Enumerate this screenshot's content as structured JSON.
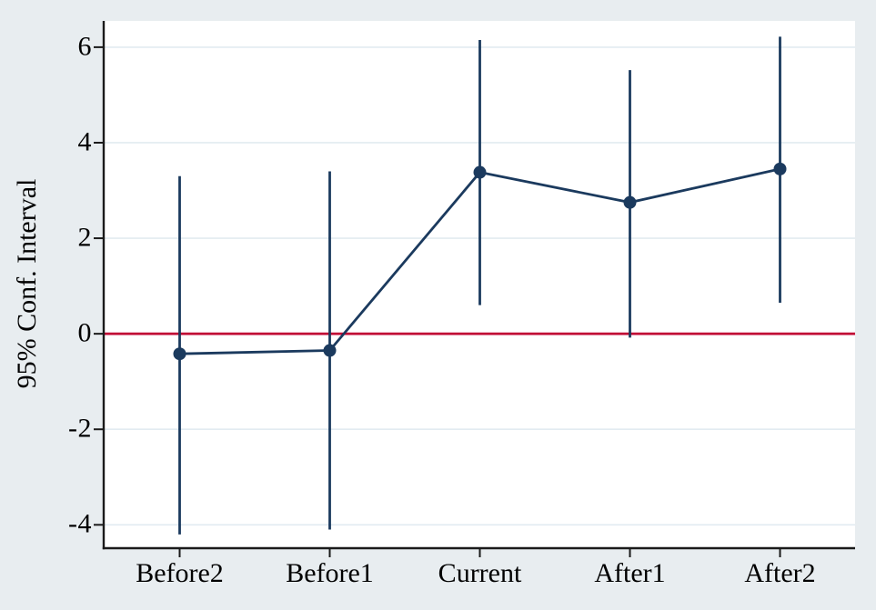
{
  "chart_data": {
    "type": "line",
    "subtype": "point_estimates_with_95ci_errorbars",
    "title": "",
    "xlabel": "",
    "ylabel": "95% Conf. Interval",
    "categories": [
      "Before2",
      "Before1",
      "Current",
      "After1",
      "After2"
    ],
    "series": [
      {
        "name": "point_estimate",
        "values": [
          -0.42,
          -0.35,
          3.38,
          2.75,
          3.45
        ]
      },
      {
        "name": "ci_lower",
        "values": [
          -4.2,
          -4.1,
          0.6,
          -0.08,
          0.65
        ]
      },
      {
        "name": "ci_upper",
        "values": [
          3.3,
          3.4,
          6.15,
          5.52,
          6.22
        ]
      }
    ],
    "yticks": [
      6,
      4,
      2,
      0,
      -2,
      -4
    ],
    "ytick_labels": [
      "6",
      "4",
      "2",
      "0",
      "-2",
      "-4"
    ],
    "ylim": [
      -4.47,
      6.55
    ],
    "grid": true,
    "legend": "none",
    "ref_line_y": 0,
    "colors": {
      "series": "#1b3a5e",
      "ref_line": "#c10534",
      "grid": "#e2ebf1",
      "background": "#e8edf0",
      "plot_bg": "#ffffff",
      "axis": "#1a1a1a",
      "text": "#000000"
    }
  }
}
